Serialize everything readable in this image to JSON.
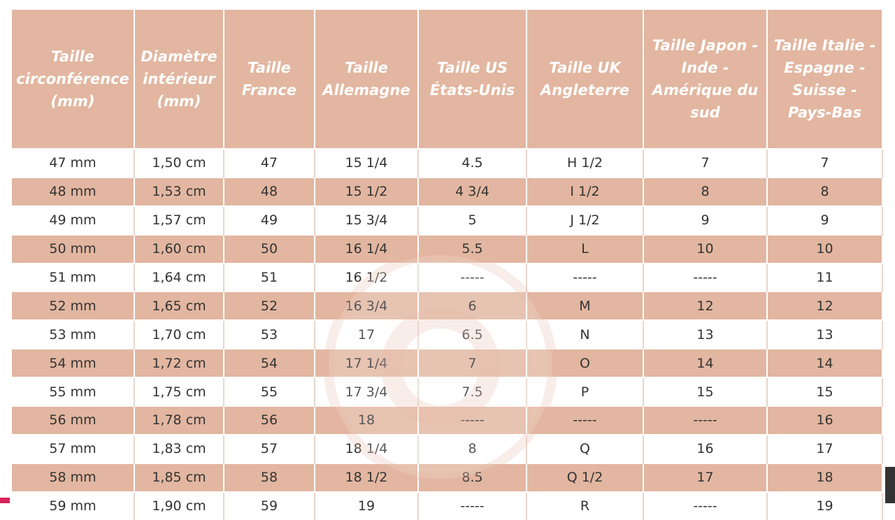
{
  "table": {
    "header": [
      "Taille circonférence (mm)",
      "Diamètre intérieur (mm)",
      "Taille France",
      "Taille Allemagne",
      "Taille US États-Unis",
      "Taille UK Angleterre",
      "Taille Japon - Inde - Amérique du sud",
      "Taille Italie - Espagne - Suisse - Pays-Bas"
    ],
    "rows": [
      [
        "47 mm",
        "1,50 cm",
        "47",
        "15 1/4",
        "4.5",
        "H 1/2",
        "7",
        "7"
      ],
      [
        "48 mm",
        "1,53 cm",
        "48",
        "15 1/2",
        "4 3/4",
        "I 1/2",
        "8",
        "8"
      ],
      [
        "49 mm",
        "1,57 cm",
        "49",
        "15 3/4",
        "5",
        "J 1/2",
        "9",
        "9"
      ],
      [
        "50 mm",
        "1,60 cm",
        "50",
        "16 1/4",
        "5.5",
        "L",
        "10",
        "10"
      ],
      [
        "51 mm",
        "1,64 cm",
        "51",
        "16 1/2",
        "-----",
        "-----",
        "-----",
        "11"
      ],
      [
        "52 mm",
        "1,65 cm",
        "52",
        "16 3/4",
        "6",
        "M",
        "12",
        "12"
      ],
      [
        "53 mm",
        "1,70 cm",
        "53",
        "17",
        "6.5",
        "N",
        "13",
        "13"
      ],
      [
        "54 mm",
        "1,72 cm",
        "54",
        "17 1/4",
        "7",
        "O",
        "14",
        "14"
      ],
      [
        "55 mm",
        "1,75 cm",
        "55",
        "17 3/4",
        "7.5",
        "P",
        "15",
        "15"
      ],
      [
        "56 mm",
        "1,78 cm",
        "56",
        "18",
        "-----",
        "-----",
        "-----",
        "16"
      ],
      [
        "57 mm",
        "1,83 cm",
        "57",
        "18 1/4",
        "8",
        "Q",
        "16",
        "17"
      ],
      [
        "58 mm",
        "1,85 cm",
        "58",
        "18 1/2",
        "8.5",
        "Q 1/2",
        "17",
        "18"
      ],
      [
        "59 mm",
        "1,90 cm",
        "59",
        "19",
        "-----",
        "R",
        "-----",
        "19"
      ]
    ]
  }
}
